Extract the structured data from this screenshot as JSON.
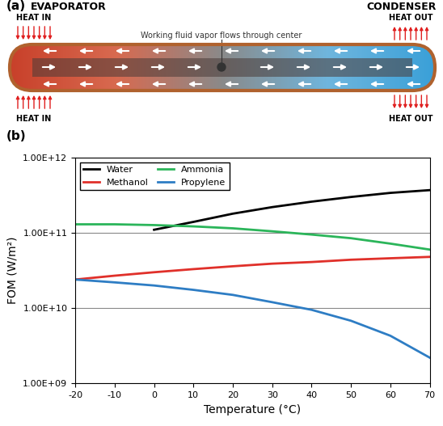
{
  "figure": {
    "panel_labels": [
      "(a)",
      "(b)"
    ]
  },
  "diagram": {
    "evaporator": "EVAPORATOR",
    "condenser": "CONDENSER",
    "heat_in": "HEAT IN",
    "heat_out": "HEAT OUT",
    "center_label": "Working fluid vapor flows through center"
  },
  "chart_data": {
    "type": "line",
    "x_label": "Temperature (°C)",
    "y_label": "FOM (W/m²)",
    "log": "y",
    "grid": "y",
    "legend": "upper left",
    "xlim": [
      -20,
      70
    ],
    "xticks": [
      -20,
      -10,
      0,
      10,
      20,
      30,
      40,
      50,
      60,
      70
    ],
    "ylim": [
      1000000000,
      1000000000000
    ],
    "yticks": [
      {
        "value": 1000000000,
        "label": "1.00E+09"
      },
      {
        "value": 10000000000,
        "label": "1.00E+10"
      },
      {
        "value": 100000000000,
        "label": "1.00E+11"
      },
      {
        "value": 1000000000000,
        "label": "1.00E+12"
      }
    ],
    "x": [
      -20,
      -10,
      0,
      10,
      20,
      30,
      40,
      50,
      60,
      70
    ],
    "series": [
      {
        "name": "Water",
        "color": "#000000",
        "values": [
          null,
          null,
          110000000000,
          140000000000,
          180000000000,
          220000000000,
          260000000000,
          300000000000,
          340000000000,
          370000000000
        ]
      },
      {
        "name": "Methanol",
        "color": "#e0302a",
        "values": [
          24000000000,
          27000000000,
          30000000000,
          33000000000,
          36000000000,
          39000000000,
          41000000000,
          44000000000,
          46000000000,
          48000000000
        ]
      },
      {
        "name": "Ammonia",
        "color": "#2bb55a",
        "values": [
          130000000000,
          130000000000,
          127000000000,
          122000000000,
          115000000000,
          105000000000,
          95000000000,
          85000000000,
          72000000000,
          60000000000
        ]
      },
      {
        "name": "Propylene",
        "color": "#2e7dc4",
        "values": [
          24000000000,
          22000000000,
          20000000000,
          17500000000,
          15000000000,
          12000000000,
          9500000000,
          6800000000,
          4300000000,
          2200000000
        ]
      }
    ]
  }
}
